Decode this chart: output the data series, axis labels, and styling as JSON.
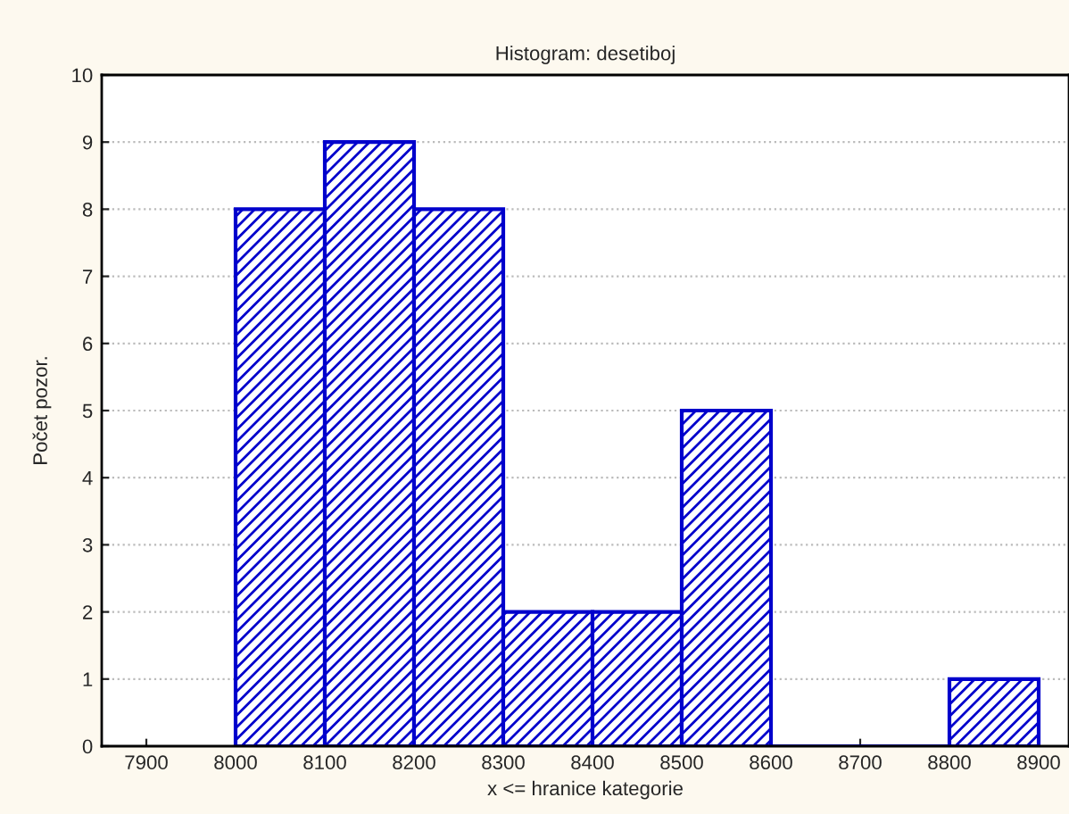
{
  "chart_data": {
    "type": "histogram",
    "title": "Histogram: desetiboj",
    "xlabel": "x <= hranice kategorie",
    "ylabel": "Počet pozor.",
    "bins": [
      8000,
      8100,
      8200,
      8300,
      8400,
      8500,
      8600,
      8700,
      8800,
      8900
    ],
    "values": [
      8,
      9,
      8,
      2,
      2,
      5,
      0,
      0,
      1
    ],
    "color": "#0000cc",
    "xlim": [
      7850,
      8934
    ],
    "xticks": [
      7900,
      8000,
      8100,
      8200,
      8300,
      8400,
      8500,
      8600,
      8700,
      8800,
      8900
    ],
    "ylim": [
      0,
      10
    ],
    "yticks": [
      0,
      1,
      2,
      3,
      4,
      5,
      6,
      7,
      8,
      9,
      10
    ],
    "grid": "y"
  }
}
